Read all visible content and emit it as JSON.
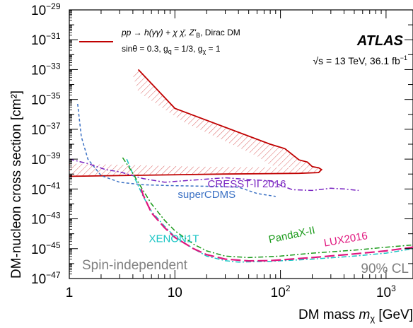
{
  "chart_data": {
    "type": "line",
    "title": "",
    "xlabel": "DM mass m_χ [GeV]",
    "ylabel": "DM-nucleon cross section [cm²]",
    "xscale": "log",
    "yscale": "log",
    "xlim": [
      1,
      1800
    ],
    "ylim": [
      1e-47,
      1e-29
    ],
    "x_ticks": [
      {
        "value": 1,
        "label": "1"
      },
      {
        "value": 10,
        "label": "10"
      },
      {
        "value": 100,
        "label": "10",
        "sup": "2"
      },
      {
        "value": 1000,
        "label": "10",
        "sup": "3"
      }
    ],
    "y_ticks": [
      {
        "value": -29,
        "sup": "−29"
      },
      {
        "value": -31,
        "sup": "−31"
      },
      {
        "value": -33,
        "sup": "−33"
      },
      {
        "value": -35,
        "sup": "−35"
      },
      {
        "value": -37,
        "sup": "−37"
      },
      {
        "value": -39,
        "sup": "−39"
      },
      {
        "value": -41,
        "sup": "−41"
      },
      {
        "value": -43,
        "sup": "−43"
      },
      {
        "value": -45,
        "sup": "−45"
      },
      {
        "value": -47,
        "sup": "−47"
      }
    ],
    "y_tick_base": "10",
    "legend": {
      "placement": "top-left",
      "line1": "pp → h(γγ) + χ χ̄, Z'",
      "line1_sub": "B",
      "line1_end": ", Dirac DM",
      "line2_a": "sinθ = 0.3, g",
      "line2_sub_a": "q",
      "line2_b": " = 1/3, g",
      "line2_sub_b": "χ",
      "line2_c": " = 1"
    },
    "atlas_label": "ATLAS",
    "energy_label": "√s = 13 TeV, 36.1 fb",
    "energy_sup": "−1",
    "spin_label": "Spin-independent",
    "cl_label": "90% CL",
    "series": [
      {
        "name": "",
        "role": "atlas-limit",
        "color": "#c00000",
        "style": "solid",
        "points": [
          [
            1,
            -40.15
          ],
          [
            5,
            -40.08
          ],
          [
            30,
            -40.0
          ],
          [
            150,
            -39.95
          ],
          [
            230,
            -39.9
          ],
          [
            245,
            -39.7
          ],
          [
            230,
            -39.58
          ],
          [
            200,
            -39.5
          ],
          [
            180,
            -39.2
          ],
          [
            150,
            -39.05
          ],
          [
            110,
            -38.3
          ],
          [
            80,
            -38.0
          ],
          [
            10,
            -35.6
          ],
          [
            4.5,
            -33.0
          ]
        ],
        "hatch_lower": [
          [
            1,
            -40.15
          ],
          [
            5,
            -40.08
          ],
          [
            30,
            -40.0
          ],
          [
            150,
            -39.95
          ],
          [
            230,
            -39.9
          ],
          [
            245,
            -39.7
          ],
          [
            230,
            -39.58
          ],
          [
            15,
            -39.5
          ],
          [
            1,
            -39.3
          ]
        ],
        "hatch_upper": [
          [
            230,
            -39.58
          ],
          [
            200,
            -39.5
          ],
          [
            180,
            -39.2
          ],
          [
            150,
            -39.05
          ],
          [
            110,
            -38.3
          ],
          [
            80,
            -38.0
          ],
          [
            10,
            -35.6
          ],
          [
            4.5,
            -33.0
          ],
          [
            4.0,
            -33.4
          ],
          [
            4.5,
            -34.5
          ],
          [
            12,
            -36.5
          ],
          [
            30,
            -37.8
          ],
          [
            60,
            -38.8
          ],
          [
            80,
            -39.4
          ],
          [
            100,
            -39.5
          ]
        ]
      },
      {
        "name": "superCDMS",
        "color": "#3a70c4",
        "style": "dashed",
        "points": [
          [
            1.2,
            -35.3
          ],
          [
            1.3,
            -37.5
          ],
          [
            1.5,
            -39.0
          ],
          [
            2,
            -40.1
          ],
          [
            3,
            -40.55
          ],
          [
            5,
            -40.72
          ],
          [
            10,
            -40.78
          ],
          [
            20,
            -40.82
          ],
          [
            40,
            -40.88
          ],
          [
            60,
            -41.3
          ],
          [
            90,
            -41.5
          ]
        ]
      },
      {
        "name": "CRESST-II 2016",
        "color": "#7a25c2",
        "style": "dashdot",
        "points": [
          [
            1,
            -39.0
          ],
          [
            1.5,
            -39.3
          ],
          [
            2.2,
            -39.7
          ],
          [
            3,
            -39.85
          ],
          [
            5,
            -40.3
          ],
          [
            8,
            -40.55
          ],
          [
            15,
            -40.4
          ],
          [
            30,
            -40.25
          ],
          [
            60,
            -40.4
          ],
          [
            80,
            -40.45
          ],
          [
            100,
            -40.75
          ],
          [
            130,
            -41.05
          ],
          [
            200,
            -41.1
          ],
          [
            300,
            -40.95
          ],
          [
            400,
            -41.0
          ],
          [
            550,
            -41.1
          ]
        ]
      },
      {
        "name": "XENON1T",
        "color": "#18c4c4",
        "style": "dashdot",
        "points": [
          [
            3.5,
            -39.0
          ],
          [
            4,
            -40.0
          ],
          [
            5,
            -41.5
          ],
          [
            6,
            -42.5
          ],
          [
            8,
            -43.5
          ],
          [
            10,
            -44.2
          ],
          [
            15,
            -45.0
          ],
          [
            20,
            -45.5
          ],
          [
            30,
            -45.8
          ],
          [
            40,
            -45.9
          ],
          [
            80,
            -45.85
          ],
          [
            200,
            -45.7
          ],
          [
            500,
            -45.5
          ],
          [
            1000,
            -45.3
          ],
          [
            1800,
            -45.0
          ]
        ]
      },
      {
        "name": "PandaX-II",
        "color": "#1a9a1a",
        "style": "dashdot",
        "points": [
          [
            3.2,
            -38.9
          ],
          [
            3.8,
            -39.7
          ],
          [
            5,
            -41.1
          ],
          [
            6,
            -42.0
          ],
          [
            8,
            -43.1
          ],
          [
            10,
            -43.8
          ],
          [
            15,
            -44.7
          ],
          [
            20,
            -45.15
          ],
          [
            30,
            -45.5
          ],
          [
            50,
            -45.6
          ],
          [
            100,
            -45.5
          ],
          [
            200,
            -45.3
          ],
          [
            500,
            -45.1
          ],
          [
            1000,
            -44.9
          ],
          [
            1800,
            -44.75
          ]
        ]
      },
      {
        "name": "LUX2016",
        "color": "#e0167e",
        "style": "longdash",
        "points": [
          [
            4.8,
            -41.0
          ],
          [
            5,
            -41.4
          ],
          [
            6,
            -42.6
          ],
          [
            8,
            -43.6
          ],
          [
            10,
            -44.25
          ],
          [
            15,
            -45.0
          ],
          [
            20,
            -45.4
          ],
          [
            30,
            -45.7
          ],
          [
            50,
            -45.82
          ],
          [
            80,
            -45.8
          ],
          [
            200,
            -45.6
          ],
          [
            500,
            -45.35
          ],
          [
            1000,
            -45.15
          ],
          [
            1800,
            -44.9
          ]
        ]
      }
    ],
    "series_labels": [
      {
        "name": "superCDMS",
        "at": [
          20,
          -41.6
        ]
      },
      {
        "name": "CRESST-II 2016",
        "at": [
          48,
          -40.9
        ]
      },
      {
        "name": "XENON1T",
        "at": [
          9.8,
          -44.55
        ]
      },
      {
        "name": "PandaX-II",
        "at": [
          130,
          -44.3
        ]
      },
      {
        "name": "LUX2016",
        "at": [
          420,
          -44.6
        ]
      }
    ]
  }
}
